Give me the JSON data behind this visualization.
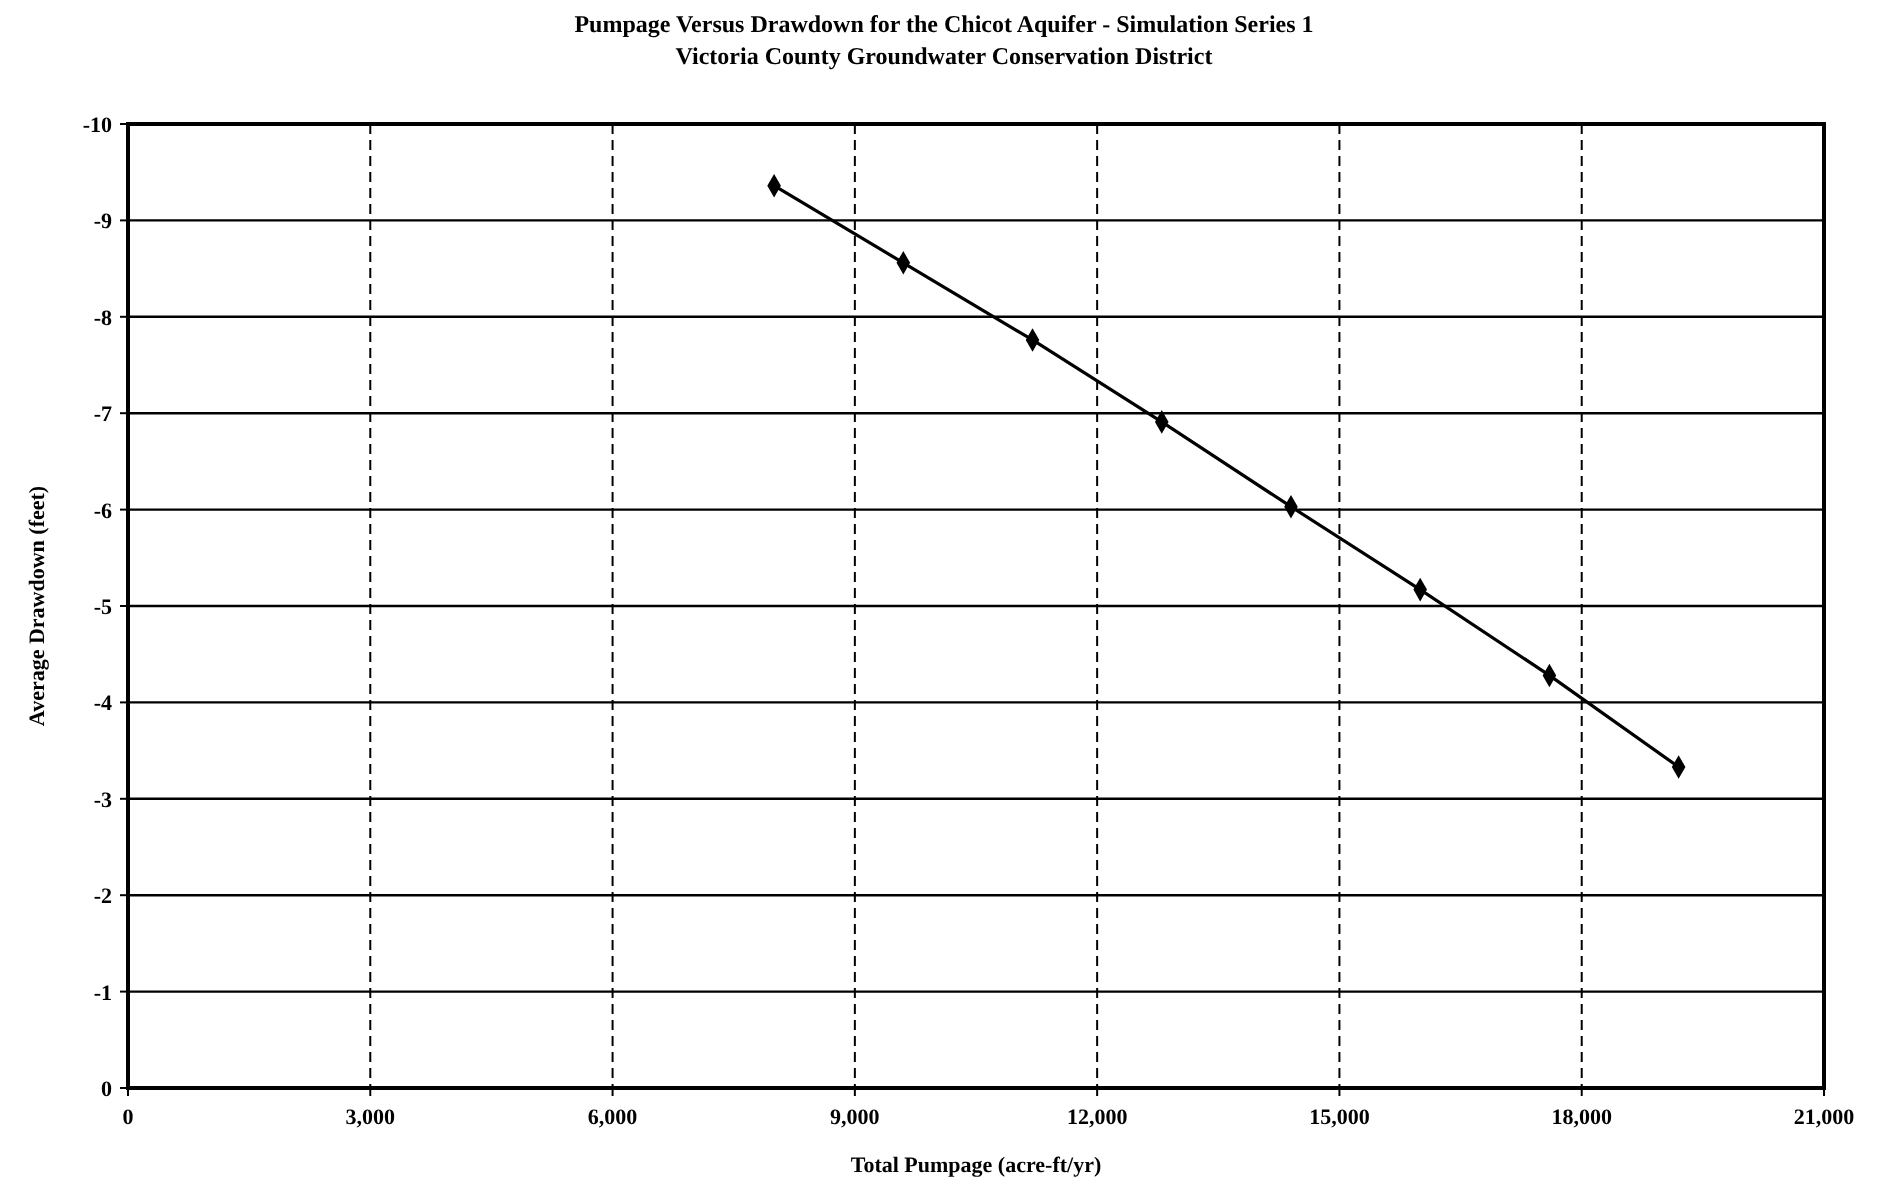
{
  "chart_data": {
    "type": "line",
    "title": "Pumpage Versus Drawdown for the Chicot Aquifer - Simulation Series 1",
    "subtitle": "Victoria County Groundwater Conservation District",
    "xlabel": "Total Pumpage (acre-ft/yr)",
    "ylabel": "Average Drawdown (feet)",
    "x": [
      8000,
      9600,
      11200,
      12800,
      14400,
      16000,
      17600,
      19200
    ],
    "series": [
      {
        "color": "#000000",
        "values": [
          -9.36,
          -8.56,
          -7.76,
          -6.91,
          -6.03,
          -5.17,
          -4.28,
          -3.33
        ]
      }
    ],
    "xlim": [
      0,
      21000
    ],
    "xticks": [
      {
        "value": 0,
        "label": "0"
      },
      {
        "value": 3000,
        "label": "3,000"
      },
      {
        "value": 6000,
        "label": "6,000"
      },
      {
        "value": 9000,
        "label": "9,000"
      },
      {
        "value": 12000,
        "label": "12,000"
      },
      {
        "value": 15000,
        "label": "15,000"
      },
      {
        "value": 18000,
        "label": "18,000"
      },
      {
        "value": 21000,
        "label": "21,000"
      }
    ],
    "ylim": [
      0,
      -10
    ],
    "yticks": [
      0,
      -1,
      -2,
      -3,
      -4,
      -5,
      -6,
      -7,
      -8,
      -9,
      -10
    ],
    "grid": true,
    "marker": "diamond",
    "line_style": "solid"
  }
}
